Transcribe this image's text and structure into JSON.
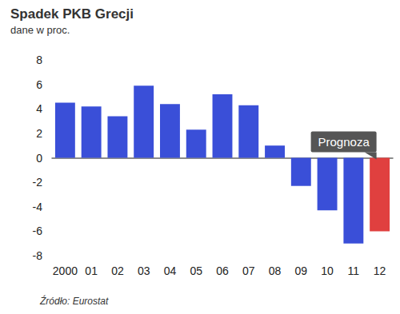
{
  "chart_data": {
    "type": "bar",
    "title": "Spadek PKB Grecji",
    "subtitle": "dane w proc.",
    "source": "Źródło: Eurostat",
    "annotation": {
      "text": "Prognoza",
      "category": "12"
    },
    "categories": [
      "2000",
      "01",
      "02",
      "03",
      "04",
      "05",
      "06",
      "07",
      "08",
      "09",
      "10",
      "11",
      "12"
    ],
    "values": [
      4.5,
      4.2,
      3.4,
      5.9,
      4.4,
      2.3,
      5.2,
      4.3,
      1.0,
      -2.3,
      -4.3,
      -7.0,
      -6.0
    ],
    "colors": [
      "#3a4fd8",
      "#3a4fd8",
      "#3a4fd8",
      "#3a4fd8",
      "#3a4fd8",
      "#3a4fd8",
      "#3a4fd8",
      "#3a4fd8",
      "#3a4fd8",
      "#3a4fd8",
      "#3a4fd8",
      "#3a4fd8",
      "#e0403f"
    ],
    "ylim": [
      -8,
      8
    ],
    "yticks": [
      -8,
      -6,
      -4,
      -2,
      0,
      2,
      4,
      6,
      8
    ],
    "grid": false
  }
}
